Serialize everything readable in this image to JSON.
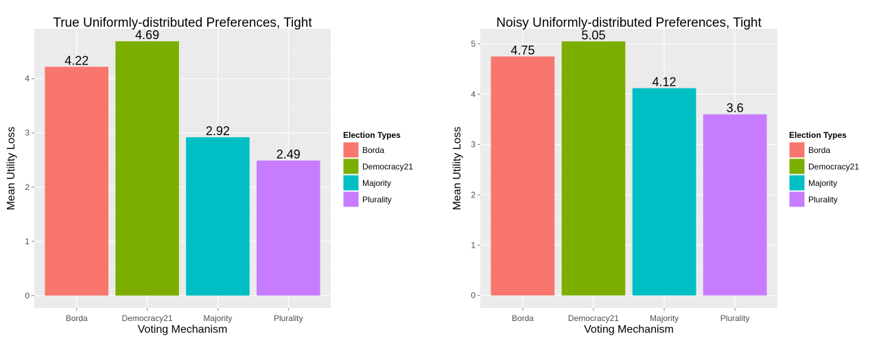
{
  "legend": {
    "title": "Election Types",
    "entries": [
      {
        "label": "Borda",
        "color": "#F8766D"
      },
      {
        "label": "Democracy21",
        "color": "#7CAE00"
      },
      {
        "label": "Majority",
        "color": "#00BFC4"
      },
      {
        "label": "Plurality",
        "color": "#C77CFF"
      }
    ]
  },
  "colors": {
    "panel_background": "#EBEBEB",
    "grid_major": "#FFFFFF",
    "grid_minor": "#F5F5F5",
    "tick_text": "#4D4D4D"
  },
  "chart_data": [
    {
      "type": "bar",
      "title": "True Uniformly-distributed Preferences, Tight",
      "xlabel": "Voting Mechanism",
      "ylabel": "Mean Utility Loss",
      "categories": [
        "Borda",
        "Democracy21",
        "Majority",
        "Plurality"
      ],
      "values": [
        4.22,
        4.69,
        2.92,
        2.49
      ],
      "data_labels": [
        "4.22",
        "4.69",
        "2.92",
        "2.49"
      ],
      "yticks": [
        0,
        1,
        2,
        3,
        4
      ],
      "ylim": [
        -0.23,
        4.92
      ],
      "grid": true,
      "legend_position": "right"
    },
    {
      "type": "bar",
      "title": "Noisy Uniformly-distributed Preferences, Tight",
      "xlabel": "Voting Mechanism",
      "ylabel": "Mean Utility Loss",
      "categories": [
        "Borda",
        "Democracy21",
        "Majority",
        "Plurality"
      ],
      "values": [
        4.75,
        5.05,
        4.12,
        3.6
      ],
      "data_labels": [
        "4.75",
        "5.05",
        "4.12",
        "3.6"
      ],
      "yticks": [
        0,
        1,
        2,
        3,
        4,
        5
      ],
      "ylim": [
        -0.25,
        5.3
      ],
      "grid": true,
      "legend_position": "right"
    }
  ]
}
